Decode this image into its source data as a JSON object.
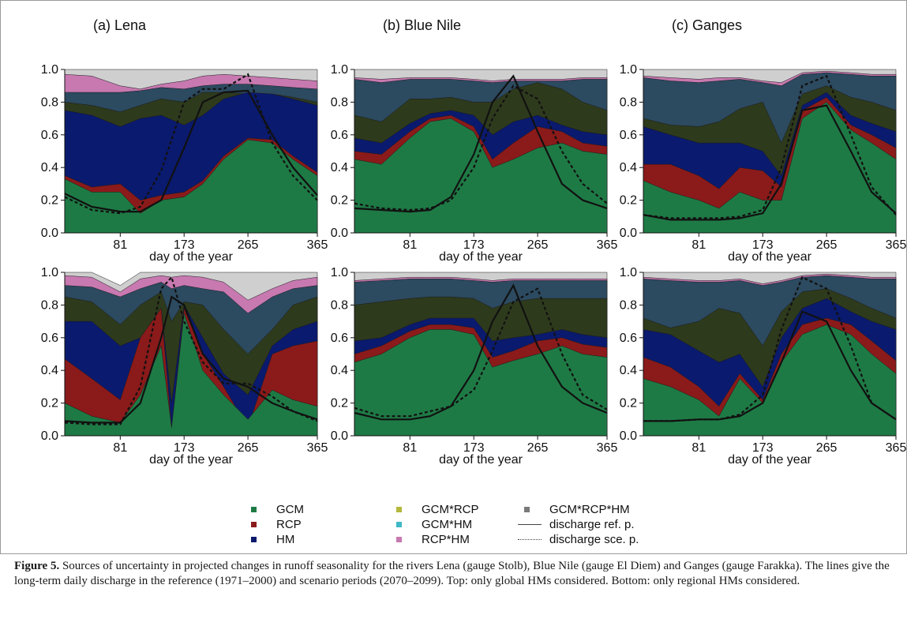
{
  "chart_data": [
    {
      "type": "area",
      "panel": "(a) Lena",
      "row": "top",
      "title": "(a) Lena",
      "xlabel": "day of the year",
      "xticks": [
        81,
        173,
        265,
        365
      ],
      "yticks": [
        "0.0",
        "0.2",
        "0.4",
        "0.6",
        "0.8",
        "1.0"
      ],
      "xlim": [
        1,
        365
      ],
      "ylim": [
        0,
        1
      ],
      "x": [
        1,
        40,
        81,
        110,
        140,
        173,
        200,
        230,
        265,
        300,
        330,
        365
      ],
      "cumulative_bounds": {
        "GCM": [
          0.33,
          0.25,
          0.25,
          0.12,
          0.2,
          0.22,
          0.3,
          0.45,
          0.57,
          0.55,
          0.45,
          0.35
        ],
        "RCP": [
          0.35,
          0.28,
          0.3,
          0.2,
          0.23,
          0.25,
          0.32,
          0.47,
          0.58,
          0.57,
          0.47,
          0.37
        ],
        "HM": [
          0.75,
          0.72,
          0.65,
          0.7,
          0.72,
          0.66,
          0.72,
          0.82,
          0.86,
          0.85,
          0.82,
          0.78
        ],
        "GCM*RCP": [
          0.8,
          0.78,
          0.74,
          0.78,
          0.82,
          0.8,
          0.86,
          0.86,
          0.85,
          0.85,
          0.83,
          0.8
        ],
        "GCM*HM": [
          0.86,
          0.86,
          0.86,
          0.87,
          0.89,
          0.88,
          0.9,
          0.91,
          0.91,
          0.9,
          0.89,
          0.88
        ],
        "RCP*HM": [
          0.97,
          0.96,
          0.9,
          0.88,
          0.91,
          0.93,
          0.96,
          0.97,
          0.96,
          0.95,
          0.94,
          0.93
        ],
        "GCM*RCP*HM": [
          1,
          1,
          1,
          1,
          1,
          1,
          1,
          1,
          1,
          1,
          1,
          1
        ]
      },
      "discharge_ref": [
        0.24,
        0.16,
        0.13,
        0.13,
        0.2,
        0.52,
        0.8,
        0.86,
        0.87,
        0.6,
        0.4,
        0.23
      ],
      "discharge_sce": [
        0.22,
        0.14,
        0.12,
        0.16,
        0.38,
        0.8,
        0.88,
        0.88,
        0.97,
        0.55,
        0.35,
        0.2
      ]
    },
    {
      "type": "area",
      "panel": "(b) Blue Nile",
      "row": "top",
      "title": "(b) Blue Nile",
      "xlabel": "day of the year",
      "xticks": [
        81,
        173,
        265,
        365
      ],
      "yticks": [
        "0.0",
        "0.2",
        "0.4",
        "0.6",
        "0.8",
        "1.0"
      ],
      "xlim": [
        1,
        365
      ],
      "ylim": [
        0,
        1
      ],
      "x": [
        1,
        40,
        81,
        110,
        140,
        173,
        200,
        230,
        265,
        300,
        330,
        365
      ],
      "cumulative_bounds": {
        "GCM": [
          0.45,
          0.42,
          0.58,
          0.68,
          0.7,
          0.62,
          0.4,
          0.45,
          0.52,
          0.55,
          0.5,
          0.48
        ],
        "RCP": [
          0.5,
          0.48,
          0.62,
          0.7,
          0.72,
          0.65,
          0.45,
          0.55,
          0.65,
          0.62,
          0.55,
          0.53
        ],
        "HM": [
          0.58,
          0.55,
          0.67,
          0.73,
          0.75,
          0.72,
          0.6,
          0.68,
          0.72,
          0.66,
          0.62,
          0.6
        ],
        "GCM*RCP": [
          0.72,
          0.68,
          0.82,
          0.82,
          0.83,
          0.8,
          0.8,
          0.88,
          0.92,
          0.88,
          0.8,
          0.75
        ],
        "GCM*HM": [
          0.94,
          0.92,
          0.94,
          0.94,
          0.94,
          0.93,
          0.92,
          0.93,
          0.93,
          0.93,
          0.94,
          0.94
        ],
        "RCP*HM": [
          0.95,
          0.94,
          0.95,
          0.95,
          0.95,
          0.94,
          0.93,
          0.94,
          0.94,
          0.94,
          0.95,
          0.95
        ],
        "GCM*RCP*HM": [
          1,
          1,
          1,
          1,
          1,
          1,
          1,
          1,
          1,
          1,
          1,
          1
        ]
      },
      "discharge_ref": [
        0.15,
        0.14,
        0.13,
        0.14,
        0.22,
        0.48,
        0.8,
        0.96,
        0.62,
        0.3,
        0.2,
        0.15
      ],
      "discharge_sce": [
        0.18,
        0.15,
        0.14,
        0.15,
        0.2,
        0.4,
        0.7,
        0.9,
        0.82,
        0.5,
        0.3,
        0.18
      ]
    },
    {
      "type": "area",
      "panel": "(c) Ganges",
      "row": "top",
      "title": "(c) Ganges",
      "xlabel": "day of the year",
      "xticks": [
        81,
        173,
        265,
        365
      ],
      "yticks": [
        "0.0",
        "0.2",
        "0.4",
        "0.6",
        "0.8",
        "1.0"
      ],
      "xlim": [
        1,
        365
      ],
      "ylim": [
        0,
        1
      ],
      "x": [
        1,
        40,
        81,
        110,
        140,
        173,
        200,
        230,
        265,
        300,
        330,
        365
      ],
      "cumulative_bounds": {
        "GCM": [
          0.32,
          0.25,
          0.2,
          0.15,
          0.25,
          0.2,
          0.2,
          0.7,
          0.8,
          0.63,
          0.55,
          0.45
        ],
        "RCP": [
          0.42,
          0.42,
          0.35,
          0.27,
          0.4,
          0.38,
          0.28,
          0.75,
          0.83,
          0.66,
          0.6,
          0.52
        ],
        "HM": [
          0.65,
          0.6,
          0.55,
          0.55,
          0.55,
          0.5,
          0.35,
          0.78,
          0.86,
          0.72,
          0.67,
          0.62
        ],
        "GCM*RCP": [
          0.7,
          0.66,
          0.65,
          0.68,
          0.76,
          0.8,
          0.55,
          0.85,
          0.9,
          0.83,
          0.8,
          0.75
        ],
        "GCM*HM": [
          0.95,
          0.93,
          0.92,
          0.93,
          0.94,
          0.92,
          0.9,
          0.97,
          0.98,
          0.97,
          0.96,
          0.96
        ],
        "RCP*HM": [
          0.96,
          0.95,
          0.94,
          0.95,
          0.95,
          0.93,
          0.92,
          0.98,
          0.99,
          0.98,
          0.97,
          0.97
        ],
        "GCM*RCP*HM": [
          1,
          1,
          1,
          1,
          1,
          1,
          1,
          1,
          1,
          1,
          1,
          1
        ]
      },
      "discharge_ref": [
        0.11,
        0.08,
        0.08,
        0.08,
        0.09,
        0.12,
        0.3,
        0.75,
        0.78,
        0.5,
        0.25,
        0.12
      ],
      "discharge_sce": [
        0.11,
        0.09,
        0.09,
        0.09,
        0.1,
        0.14,
        0.4,
        0.9,
        0.96,
        0.6,
        0.28,
        0.11
      ]
    },
    {
      "type": "area",
      "panel": "(a) Lena",
      "row": "bottom",
      "xlabel": "day of the year",
      "xticks": [
        81,
        173,
        265,
        365
      ],
      "yticks": [
        "0.0",
        "0.2",
        "0.4",
        "0.6",
        "0.8",
        "1.0"
      ],
      "xlim": [
        1,
        365
      ],
      "ylim": [
        0,
        1
      ],
      "x": [
        1,
        40,
        81,
        110,
        140,
        155,
        173,
        200,
        230,
        265,
        300,
        330,
        365
      ],
      "cumulative_bounds": {
        "GCM": [
          0.2,
          0.12,
          0.08,
          0.25,
          0.55,
          0.05,
          0.75,
          0.4,
          0.25,
          0.1,
          0.28,
          0.22,
          0.18
        ],
        "RCP": [
          0.47,
          0.35,
          0.22,
          0.6,
          0.78,
          0.05,
          0.78,
          0.5,
          0.3,
          0.05,
          0.5,
          0.55,
          0.58
        ],
        "HM": [
          0.7,
          0.7,
          0.55,
          0.6,
          0.78,
          0.2,
          0.8,
          0.6,
          0.38,
          0.25,
          0.55,
          0.65,
          0.7
        ],
        "GCM*RCP": [
          0.85,
          0.82,
          0.68,
          0.8,
          0.88,
          0.7,
          0.82,
          0.8,
          0.65,
          0.5,
          0.65,
          0.8,
          0.85
        ],
        "GCM*HM": [
          0.92,
          0.91,
          0.85,
          0.9,
          0.94,
          0.9,
          0.92,
          0.9,
          0.88,
          0.75,
          0.85,
          0.9,
          0.92
        ],
        "RCP*HM": [
          0.98,
          0.97,
          0.88,
          0.96,
          0.98,
          0.97,
          0.98,
          0.97,
          0.94,
          0.83,
          0.9,
          0.95,
          0.97
        ],
        "GCM*RCP*HM": [
          1,
          1,
          0.92,
          1,
          1,
          1,
          1,
          1,
          1,
          1,
          1,
          1,
          1
        ]
      },
      "discharge_ref": [
        0.09,
        0.08,
        0.08,
        0.2,
        0.6,
        0.85,
        0.8,
        0.5,
        0.35,
        0.3,
        0.2,
        0.15,
        0.1
      ],
      "discharge_sce": [
        0.08,
        0.07,
        0.07,
        0.3,
        0.9,
        0.97,
        0.7,
        0.45,
        0.32,
        0.32,
        0.24,
        0.15,
        0.09
      ]
    },
    {
      "type": "area",
      "panel": "(b) Blue Nile",
      "row": "bottom",
      "xlabel": "day of the year",
      "xticks": [
        81,
        173,
        265,
        365
      ],
      "yticks": [
        "0.0",
        "0.2",
        "0.4",
        "0.6",
        "0.8",
        "1.0"
      ],
      "xlim": [
        1,
        365
      ],
      "ylim": [
        0,
        1
      ],
      "x": [
        1,
        40,
        81,
        110,
        140,
        173,
        200,
        230,
        265,
        300,
        330,
        365
      ],
      "cumulative_bounds": {
        "GCM": [
          0.45,
          0.5,
          0.6,
          0.65,
          0.65,
          0.62,
          0.42,
          0.46,
          0.5,
          0.55,
          0.5,
          0.48
        ],
        "RCP": [
          0.5,
          0.55,
          0.64,
          0.68,
          0.68,
          0.66,
          0.48,
          0.52,
          0.58,
          0.6,
          0.56,
          0.54
        ],
        "HM": [
          0.58,
          0.6,
          0.68,
          0.72,
          0.72,
          0.72,
          0.58,
          0.6,
          0.62,
          0.65,
          0.62,
          0.6
        ],
        "GCM*RCP": [
          0.8,
          0.82,
          0.84,
          0.85,
          0.85,
          0.84,
          0.78,
          0.82,
          0.84,
          0.84,
          0.84,
          0.84
        ],
        "GCM*HM": [
          0.94,
          0.95,
          0.96,
          0.96,
          0.96,
          0.95,
          0.94,
          0.95,
          0.95,
          0.95,
          0.95,
          0.95
        ],
        "RCP*HM": [
          0.95,
          0.96,
          0.97,
          0.97,
          0.97,
          0.96,
          0.95,
          0.96,
          0.96,
          0.96,
          0.96,
          0.96
        ],
        "GCM*RCP*HM": [
          1,
          1,
          1,
          1,
          1,
          1,
          1,
          1,
          1,
          1,
          1,
          1
        ]
      },
      "discharge_ref": [
        0.14,
        0.1,
        0.1,
        0.12,
        0.18,
        0.4,
        0.7,
        0.92,
        0.55,
        0.3,
        0.2,
        0.14
      ],
      "discharge_sce": [
        0.17,
        0.12,
        0.12,
        0.15,
        0.18,
        0.28,
        0.52,
        0.82,
        0.9,
        0.5,
        0.25,
        0.16
      ]
    },
    {
      "type": "area",
      "panel": "(c) Ganges",
      "row": "bottom",
      "xlabel": "day of the year",
      "xticks": [
        81,
        173,
        265,
        365
      ],
      "yticks": [
        "0.0",
        "0.2",
        "0.4",
        "0.6",
        "0.8",
        "1.0"
      ],
      "xlim": [
        1,
        365
      ],
      "ylim": [
        0,
        1
      ],
      "x": [
        1,
        40,
        81,
        110,
        140,
        173,
        200,
        230,
        265,
        300,
        330,
        365
      ],
      "cumulative_bounds": {
        "GCM": [
          0.35,
          0.3,
          0.22,
          0.12,
          0.35,
          0.2,
          0.45,
          0.62,
          0.68,
          0.62,
          0.5,
          0.38
        ],
        "RCP": [
          0.48,
          0.42,
          0.3,
          0.18,
          0.38,
          0.22,
          0.5,
          0.68,
          0.72,
          0.68,
          0.58,
          0.46
        ],
        "HM": [
          0.65,
          0.62,
          0.52,
          0.45,
          0.5,
          0.3,
          0.6,
          0.78,
          0.84,
          0.76,
          0.7,
          0.65
        ],
        "GCM*RCP": [
          0.72,
          0.66,
          0.7,
          0.78,
          0.75,
          0.55,
          0.76,
          0.88,
          0.9,
          0.84,
          0.78,
          0.72
        ],
        "GCM*HM": [
          0.96,
          0.95,
          0.94,
          0.94,
          0.95,
          0.92,
          0.94,
          0.97,
          0.98,
          0.97,
          0.96,
          0.96
        ],
        "RCP*HM": [
          0.97,
          0.96,
          0.95,
          0.95,
          0.96,
          0.93,
          0.95,
          0.98,
          0.99,
          0.98,
          0.97,
          0.97
        ],
        "GCM*RCP*HM": [
          1,
          1,
          1,
          1,
          1,
          1,
          1,
          1,
          1,
          1,
          1,
          1
        ]
      },
      "discharge_ref": [
        0.09,
        0.09,
        0.1,
        0.1,
        0.12,
        0.2,
        0.45,
        0.76,
        0.7,
        0.4,
        0.2,
        0.1
      ],
      "discharge_sce": [
        0.09,
        0.09,
        0.1,
        0.1,
        0.13,
        0.25,
        0.65,
        0.97,
        0.9,
        0.55,
        0.2,
        0.1
      ]
    }
  ],
  "legend": [
    {
      "label": "GCM",
      "color": "#1e7a45",
      "marker": "square"
    },
    {
      "label": "RCP",
      "color": "#8b1a1a",
      "marker": "square"
    },
    {
      "label": "HM",
      "color": "#0a1a6e",
      "marker": "square"
    },
    {
      "label": "GCM*RCP",
      "color": "#2e3a1c",
      "swatch_color": "#b5b83a",
      "marker": "square"
    },
    {
      "label": "GCM*HM",
      "color": "#2c4a60",
      "swatch_color": "#3fb8c8",
      "marker": "square"
    },
    {
      "label": "RCP*HM",
      "color": "#c779b0",
      "marker": "square"
    },
    {
      "label": "GCM*RCP*HM",
      "color": "#cfcfcf",
      "swatch_color": "#7a7a7a",
      "marker": "square"
    },
    {
      "label": "discharge ref. p.",
      "style": "solid",
      "color": "#111111"
    },
    {
      "label": "discharge sce. p.",
      "style": "dotted",
      "color": "#111111"
    }
  ],
  "caption": {
    "label": "Figure 5.",
    "text": " Sources of uncertainty in projected changes in runoff seasonality for the rivers Lena (gauge Stolb), Blue Nile (gauge El Diem) and Ganges (gauge Farakka). The lines give the long-term daily discharge in the reference (1971–2000) and scenario periods (2070–2099). Top: only global HMs considered. Bottom: only regional HMs considered."
  }
}
